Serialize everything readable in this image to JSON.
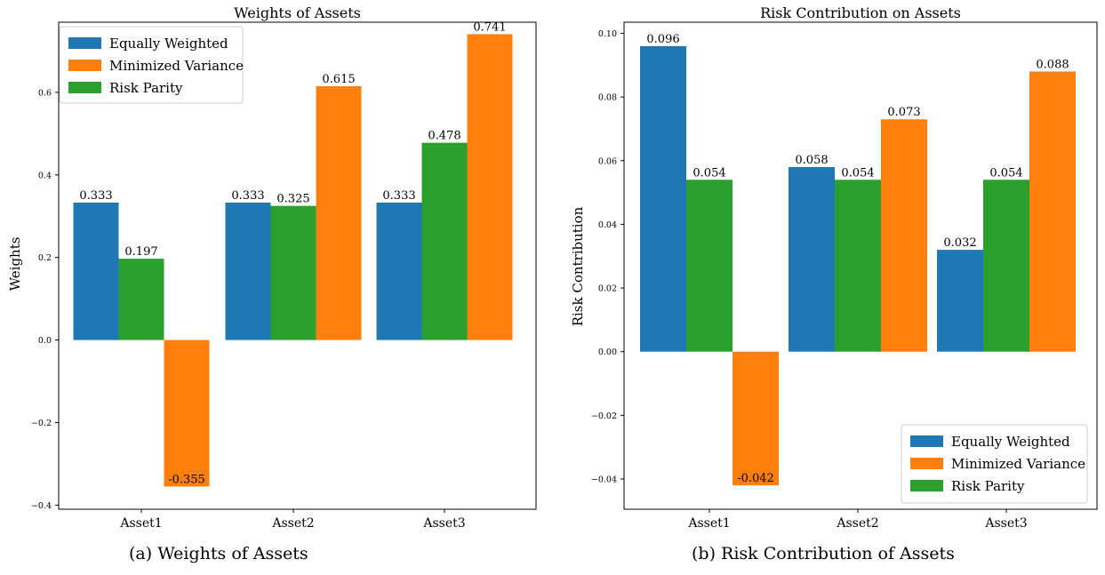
{
  "chart_data": [
    {
      "type": "bar",
      "title": "Weights of Assets",
      "xlabel": "",
      "ylabel": "Weights",
      "categories": [
        "Asset1",
        "Asset2",
        "Asset3"
      ],
      "series": [
        {
          "name": "Equally Weighted",
          "values": [
            0.333,
            0.333,
            0.333
          ]
        },
        {
          "name": "Minimized Variance",
          "values": [
            -0.355,
            0.615,
            0.741
          ]
        },
        {
          "name": "Risk Parity",
          "values": [
            0.197,
            0.325,
            0.478
          ]
        }
      ],
      "bar_order": [
        [
          0,
          2,
          1
        ],
        [
          0,
          2,
          1
        ],
        [
          0,
          2,
          1
        ]
      ],
      "data_labels": [
        [
          "0.333",
          "-0.355",
          "0.197"
        ],
        [
          "0.333",
          "0.615",
          "0.325"
        ],
        [
          "0.333",
          "0.741",
          "0.478"
        ]
      ],
      "ylim": [
        -0.41,
        0.77
      ],
      "yticks": [
        -0.4,
        -0.2,
        0.0,
        0.2,
        0.4,
        0.6
      ],
      "ytick_labels": [
        "−0.4",
        "−0.2",
        "0.0",
        "0.2",
        "0.4",
        "0.6"
      ],
      "grid": false,
      "legend": "top-left"
    },
    {
      "type": "bar",
      "title": "Risk Contribution on Assets",
      "xlabel": "",
      "ylabel": "Risk Contribution",
      "categories": [
        "Asset1",
        "Asset2",
        "Asset3"
      ],
      "series": [
        {
          "name": "Equally Weighted",
          "values": [
            0.096,
            0.058,
            0.032
          ]
        },
        {
          "name": "Minimized Variance",
          "values": [
            -0.042,
            0.073,
            0.088
          ]
        },
        {
          "name": "Risk Parity",
          "values": [
            0.054,
            0.054,
            0.054
          ]
        }
      ],
      "bar_order": [
        [
          0,
          2,
          1
        ],
        [
          0,
          2,
          1
        ],
        [
          0,
          2,
          1
        ]
      ],
      "data_labels": [
        [
          "0.096",
          "-0.042",
          "0.054"
        ],
        [
          "0.058",
          "0.073",
          "0.054"
        ],
        [
          "0.032",
          "0.088",
          "0.054"
        ]
      ],
      "ylim": [
        -0.0495,
        0.1035
      ],
      "yticks": [
        -0.04,
        -0.02,
        0.0,
        0.02,
        0.04,
        0.06,
        0.08,
        0.1
      ],
      "ytick_labels": [
        "−0.04",
        "−0.02",
        "0.00",
        "0.02",
        "0.04",
        "0.06",
        "0.08",
        "0.10"
      ],
      "grid": false,
      "legend": "bottom-right"
    }
  ],
  "colors": {
    "Equally Weighted": "#1f77b4",
    "Minimized Variance": "#ff7f0e",
    "Risk Parity": "#2ca02c"
  },
  "captions": {
    "a": "(a)  Weights of Assets",
    "b": "(b)  Risk Contribution of Assets"
  }
}
